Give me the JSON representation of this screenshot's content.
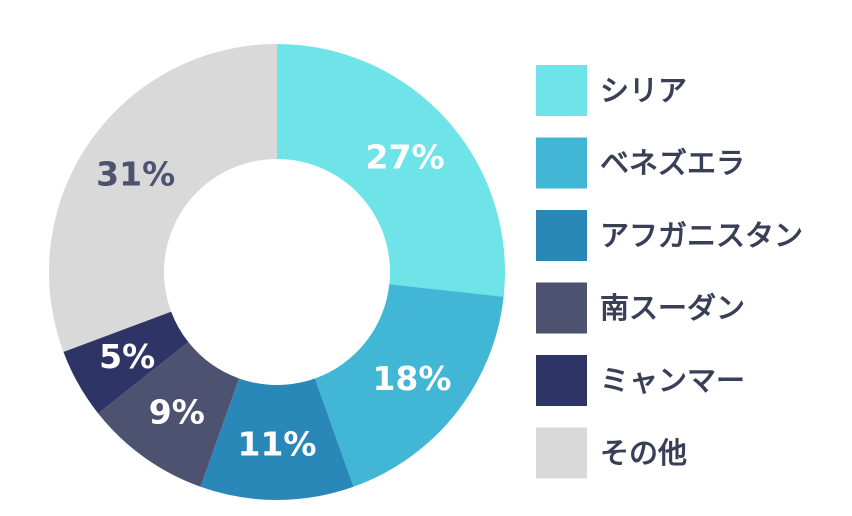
{
  "chart_data": {
    "type": "pie",
    "variant": "donut",
    "categories": [
      "シリア",
      "ベネズエラ",
      "アフガニスタン",
      "南スーダン",
      "ミャンマー",
      "その他"
    ],
    "values": [
      27,
      18,
      11,
      9,
      5,
      31
    ],
    "value_labels": [
      "27%",
      "18%",
      "11%",
      "9%",
      "5%",
      "31%"
    ],
    "colors": [
      "#6ee3e8",
      "#42b6d5",
      "#2a88b9",
      "#4c5270",
      "#2e3466",
      "#d9d9d9"
    ],
    "label_colors": [
      "#ffffff",
      "#ffffff",
      "#ffffff",
      "#ffffff",
      "#ffffff",
      "#4c5270"
    ],
    "legend_position": "right",
    "start_angle": "top",
    "direction": "clockwise"
  }
}
